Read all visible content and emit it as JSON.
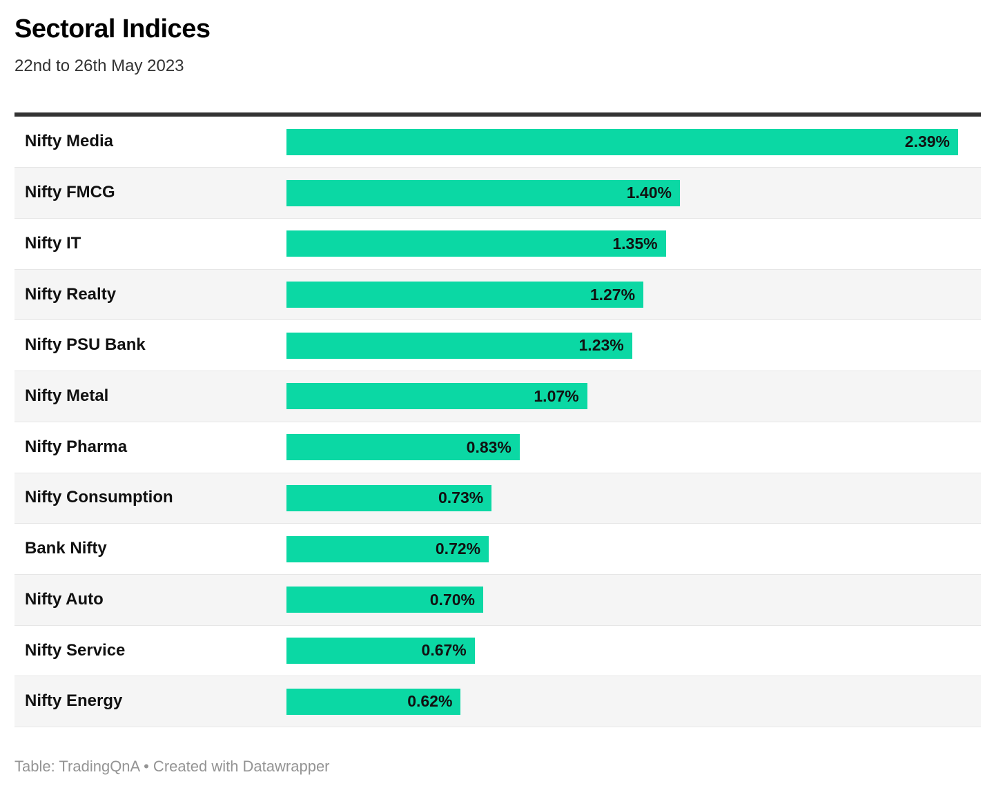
{
  "header": {
    "title": "Sectoral Indices",
    "subtitle": "22nd to 26th May 2023"
  },
  "footer": {
    "text": "Table: TradingQnA • Created with Datawrapper"
  },
  "colors": {
    "bar": "#0bd8a4",
    "row_stripe": "#f5f5f5",
    "header_rule": "#333333",
    "row_separator": "#e6e6e6",
    "footer_text": "#949494",
    "value_text": "#111111"
  },
  "chart_data": {
    "type": "bar",
    "orientation": "horizontal",
    "title": "Sectoral Indices",
    "subtitle": "22nd to 26th May 2023",
    "categories": [
      "Nifty Media",
      "Nifty FMCG",
      "Nifty IT",
      "Nifty Realty",
      "Nifty PSU Bank",
      "Nifty Metal",
      "Nifty Pharma",
      "Nifty Consumption",
      "Bank Nifty",
      "Nifty Auto",
      "Nifty Service",
      "Nifty Energy"
    ],
    "values": [
      2.39,
      1.4,
      1.35,
      1.27,
      1.23,
      1.07,
      0.83,
      0.73,
      0.72,
      0.7,
      0.67,
      0.62
    ],
    "value_labels": [
      "2.39%",
      "1.40%",
      "1.35%",
      "1.27%",
      "1.23%",
      "1.07%",
      "0.83%",
      "0.73%",
      "0.72%",
      "0.70%",
      "0.67%",
      "0.62%"
    ],
    "value_suffix": "%",
    "xlim": [
      0,
      2.39
    ],
    "grid": false,
    "legend": false,
    "value_labels_position": "inside-end",
    "striped_rows": "even-index-from-second"
  }
}
